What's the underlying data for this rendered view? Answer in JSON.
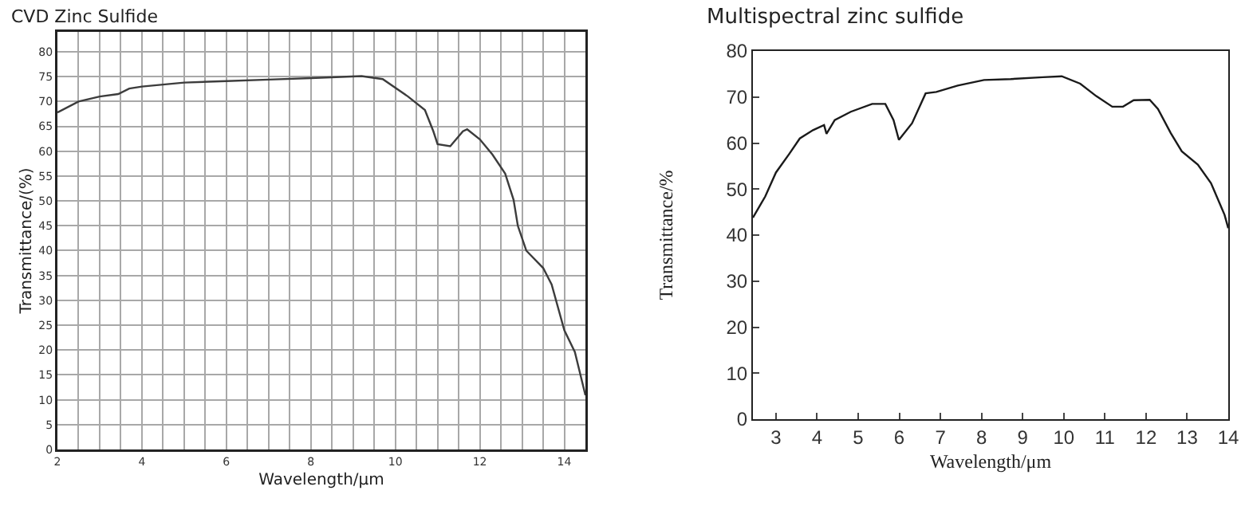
{
  "chart_data": [
    {
      "type": "line",
      "title": "CVD Zinc Sulfide",
      "xlabel": "Wavelength/μm",
      "ylabel": "Transmittance/(%)",
      "x": [
        2,
        2.5,
        3,
        3.44,
        3.7,
        4,
        5,
        6,
        7,
        8,
        9.2,
        9.7,
        10.3,
        10.7,
        10.9,
        11.0,
        11.3,
        11.6,
        11.7,
        12.0,
        12.3,
        12.6,
        12.8,
        12.9,
        13.1,
        13.5,
        13.7,
        14.0,
        14.25,
        14.5
      ],
      "series": [
        {
          "color": "#3c3c3c",
          "values": [
            67.8,
            70,
            71,
            71.5,
            72.6,
            73,
            73.8,
            74.1,
            74.4,
            74.7,
            75.1,
            74.5,
            71,
            68.3,
            64,
            61.4,
            61,
            64,
            64.4,
            62.4,
            59.3,
            55.5,
            50.2,
            45,
            40,
            36.5,
            33.2,
            24,
            19.6,
            10.9
          ]
        }
      ],
      "xlim": [
        2,
        14.5
      ],
      "ylim": [
        0,
        84
      ],
      "xticks": [
        2,
        {
          "value": 2.5,
          "label": null
        },
        {
          "value": 3,
          "label": null
        },
        {
          "value": 3.5,
          "label": null
        },
        4,
        {
          "value": 4.5,
          "label": null
        },
        {
          "value": 5,
          "label": null
        },
        {
          "value": 5.5,
          "label": null
        },
        6,
        {
          "value": 6.5,
          "label": null
        },
        {
          "value": 7,
          "label": null
        },
        {
          "value": 7.5,
          "label": null
        },
        8,
        {
          "value": 8.5,
          "label": null
        },
        {
          "value": 9,
          "label": null
        },
        {
          "value": 9.5,
          "label": null
        },
        10,
        {
          "value": 10.5,
          "label": null
        },
        {
          "value": 11,
          "label": null
        },
        {
          "value": 11.5,
          "label": null
        },
        12,
        {
          "value": 12.5,
          "label": null
        },
        {
          "value": 13,
          "label": null
        },
        {
          "value": 13.5,
          "label": null
        },
        14
      ],
      "yticks": [
        0,
        5,
        10,
        15,
        20,
        25,
        30,
        35,
        40,
        45,
        50,
        55,
        60,
        65,
        70,
        75,
        80
      ],
      "grid": true
    },
    {
      "type": "line",
      "title": "Multispectral zinc sulfide",
      "xlabel": "Wavelength/μm",
      "ylabel": "Transmittance/%",
      "x": [
        2.44,
        2.74,
        3.0,
        3.32,
        3.58,
        3.9,
        4.17,
        4.23,
        4.43,
        4.82,
        5.34,
        5.66,
        5.86,
        5.99,
        6.31,
        6.64,
        6.9,
        7.42,
        8.06,
        8.71,
        9.49,
        9.95,
        10.4,
        10.79,
        11.18,
        11.44,
        11.7,
        12.09,
        12.29,
        12.6,
        12.87,
        13.26,
        13.58,
        13.91,
        14.0
      ],
      "series": [
        {
          "color": "#1a1a1a",
          "values": [
            43.8,
            48.4,
            53.6,
            57.6,
            61,
            62.8,
            63.9,
            62,
            65,
            66.8,
            68.5,
            68.5,
            65,
            60.7,
            64.3,
            70.8,
            71.1,
            72.5,
            73.7,
            73.9,
            74.3,
            74.5,
            72.9,
            70.2,
            67.9,
            67.9,
            69.3,
            69.4,
            67.4,
            62.2,
            58.2,
            55.3,
            51.3,
            44.4,
            41.5
          ]
        }
      ],
      "xlim": [
        2.44,
        14
      ],
      "ylim": [
        0,
        80
      ],
      "xticks": [
        3,
        4,
        5,
        6,
        7,
        8,
        9,
        10,
        11,
        12,
        13,
        14
      ],
      "yticks": [
        0,
        10,
        20,
        30,
        40,
        50,
        60,
        70,
        80
      ],
      "grid": false
    }
  ]
}
